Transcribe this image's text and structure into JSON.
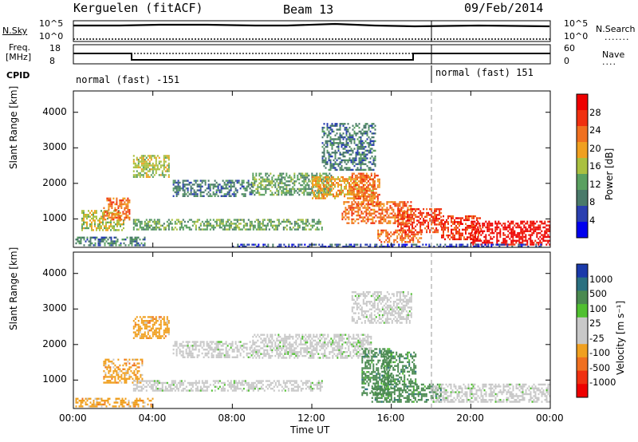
{
  "header": {
    "title": "Kerguelen (fitACF)",
    "beam": "Beam 13",
    "date": "09/Feb/2014"
  },
  "nsky_panel": {
    "left_label": "N.Sky",
    "left_ticks": [
      "10^5",
      "10^0"
    ],
    "right_label": "N.Search",
    "right_ticks": [
      "10^5",
      "10^0"
    ]
  },
  "freq_panel": {
    "left_label_1": "Freq.",
    "left_label_2": "[MHz]",
    "left_ticks": [
      "18",
      "8"
    ],
    "right_label": "Nave",
    "right_ticks": [
      "60",
      "0"
    ]
  },
  "cpid": {
    "label": "CPID",
    "mode_1": "normal (fast) -151",
    "mode_2": "normal (fast) 151"
  },
  "colors": {
    "power_scale": [
      "#0000ee",
      "#2a3fb0",
      "#4a7a6a",
      "#5aa060",
      "#aac040",
      "#f0a020",
      "#f07020",
      "#f03010",
      "#ee0000"
    ],
    "velocity_scale": [
      "#1a3aaa",
      "#2a7080",
      "#4a8a50",
      "#50c030",
      "#c8c8c8",
      "#c8c8c8",
      "#f0a020",
      "#f07020",
      "#f03010",
      "#ee0000"
    ],
    "ground_scatter": "#c0c0c0"
  },
  "chart_data": [
    {
      "type": "heatmap",
      "panel": "power",
      "ylabel": "Slant Range [km]",
      "y_ticks": [
        "4000",
        "3000",
        "2000",
        "1000"
      ],
      "ylim": [
        200,
        4600
      ],
      "xlim": [
        0,
        24
      ],
      "colorbar_label": "Power [dB]",
      "colorbar_ticks": [
        "28",
        "24",
        "20",
        "16",
        "12",
        "8",
        "4"
      ],
      "scatter_regions": [
        {
          "t0": 0.1,
          "t1": 3.6,
          "r0": 250,
          "r1": 500,
          "value": 9
        },
        {
          "t0": 0.4,
          "t1": 2.5,
          "r0": 700,
          "r1": 1250,
          "value": 14
        },
        {
          "t0": 1.5,
          "t1": 2.8,
          "r0": 1000,
          "r1": 1600,
          "value": 22
        },
        {
          "t0": 3.0,
          "t1": 12.5,
          "r0": 700,
          "r1": 1000,
          "value": 11
        },
        {
          "t0": 3.0,
          "t1": 4.8,
          "r0": 2200,
          "r1": 2800,
          "value": 14
        },
        {
          "t0": 5.0,
          "t1": 9.0,
          "r0": 1650,
          "r1": 2100,
          "value": 8
        },
        {
          "t0": 9.0,
          "t1": 13.0,
          "r0": 1700,
          "r1": 2300,
          "value": 12
        },
        {
          "t0": 12.0,
          "t1": 15.2,
          "r0": 1600,
          "r1": 2200,
          "value": 20
        },
        {
          "t0": 14.0,
          "t1": 15.4,
          "r0": 1400,
          "r1": 2300,
          "value": 25
        },
        {
          "t0": 12.5,
          "t1": 15.2,
          "r0": 2400,
          "r1": 3700,
          "value": 7
        },
        {
          "t0": 13.5,
          "t1": 17.0,
          "r0": 900,
          "r1": 1500,
          "value": 22
        },
        {
          "t0": 15.3,
          "t1": 17.5,
          "r0": 350,
          "r1": 700,
          "value": 24
        },
        {
          "t0": 16.3,
          "t1": 18.5,
          "r0": 600,
          "r1": 1300,
          "value": 28
        },
        {
          "t0": 18.5,
          "t1": 20.5,
          "r0": 400,
          "r1": 1100,
          "value": 26
        },
        {
          "t0": 20.0,
          "t1": 24.0,
          "r0": 300,
          "r1": 950,
          "value": 30
        },
        {
          "t0": 8.0,
          "t1": 23.5,
          "r0": 220,
          "r1": 300,
          "value": 5
        }
      ]
    },
    {
      "type": "heatmap",
      "panel": "velocity",
      "ylabel": "Slant Range [km]",
      "y_ticks": [
        "4000",
        "3000",
        "2000",
        "1000"
      ],
      "ylim": [
        200,
        4600
      ],
      "xlim": [
        0,
        24
      ],
      "xlabel": "Time UT",
      "x_ticks": [
        "00:00",
        "04:00",
        "08:00",
        "12:00",
        "16:00",
        "20:00",
        "00:00"
      ],
      "colorbar_label": "Velocity [m s⁻¹]",
      "colorbar_ticks": [
        "1000",
        "500",
        "100",
        "25",
        "-25",
        "-100",
        "-500",
        "-1000"
      ],
      "scatter_regions": [
        {
          "t0": 0.1,
          "t1": 4.0,
          "r0": 250,
          "r1": 500,
          "value": -150
        },
        {
          "t0": 1.5,
          "t1": 3.5,
          "r0": 900,
          "r1": 1600,
          "value": -300
        },
        {
          "t0": 3.0,
          "t1": 4.8,
          "r0": 2200,
          "r1": 2800,
          "value": -200
        },
        {
          "t0": 3.0,
          "t1": 12.5,
          "r0": 700,
          "r1": 1000,
          "value": 0
        },
        {
          "t0": 5.0,
          "t1": 9.0,
          "r0": 1650,
          "r1": 2100,
          "value": 0
        },
        {
          "t0": 9.0,
          "t1": 15.0,
          "r0": 1600,
          "r1": 2300,
          "value": 0
        },
        {
          "t0": 14.5,
          "t1": 16.0,
          "r0": 600,
          "r1": 1900,
          "value": 200
        },
        {
          "t0": 15.5,
          "t1": 17.2,
          "r0": 900,
          "r1": 1800,
          "value": 300
        },
        {
          "t0": 15.0,
          "t1": 18.5,
          "r0": 400,
          "r1": 900,
          "value": 150
        },
        {
          "t0": 18.0,
          "t1": 24.0,
          "r0": 400,
          "r1": 900,
          "value": 0
        },
        {
          "t0": 14.0,
          "t1": 17.0,
          "r0": 2600,
          "r1": 3500,
          "value": 0
        }
      ]
    }
  ]
}
